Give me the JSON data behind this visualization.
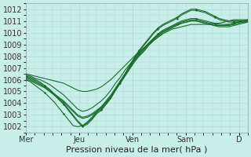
{
  "background_color": "#c8eee8",
  "plot_bg_color": "#c8eee8",
  "grid_color": "#aadddd",
  "line_color": "#1a6b2a",
  "title": "Pression niveau de la mer( hPa )",
  "ylim": [
    1001.5,
    1012.5
  ],
  "yticks": [
    1002,
    1003,
    1004,
    1005,
    1006,
    1007,
    1008,
    1009,
    1010,
    1011,
    1012
  ],
  "xtick_labels": [
    "Mer",
    "Jeu",
    "Ven",
    "Sam",
    "D"
  ],
  "xtick_positions": [
    0,
    24,
    48,
    72,
    96
  ],
  "xlim": [
    0,
    100
  ],
  "lines": [
    [
      1006.3,
      1006.2,
      1006.0,
      1005.8,
      1005.5,
      1005.2,
      1004.8,
      1004.4,
      1004.0,
      1003.5,
      1003.0,
      1002.5,
      1002.1,
      1002.3,
      1002.7,
      1003.2,
      1003.5,
      1004.0,
      1004.5,
      1005.2,
      1005.8,
      1006.5,
      1007.2,
      1007.9,
      1008.5,
      1009.0,
      1009.5,
      1010.0,
      1010.4,
      1010.7,
      1010.9,
      1011.1,
      1011.3,
      1011.6,
      1011.8,
      1012.0,
      1012.0,
      1011.9,
      1011.8,
      1011.6,
      1011.4,
      1011.2,
      1011.1,
      1011.0,
      1011.0,
      1011.0,
      1011.0,
      1011.0
    ],
    [
      1006.3,
      1006.1,
      1005.9,
      1005.7,
      1005.4,
      1005.1,
      1004.7,
      1004.3,
      1003.9,
      1003.4,
      1002.9,
      1002.4,
      1002.0,
      1002.2,
      1002.6,
      1003.1,
      1003.4,
      1003.9,
      1004.4,
      1005.1,
      1005.7,
      1006.4,
      1007.1,
      1007.8,
      1008.4,
      1008.9,
      1009.4,
      1009.9,
      1010.3,
      1010.6,
      1010.8,
      1011.0,
      1011.2,
      1011.5,
      1011.7,
      1011.9,
      1011.9,
      1011.8,
      1011.7,
      1011.5,
      1011.3,
      1011.1,
      1011.0,
      1010.9,
      1010.9,
      1010.9,
      1010.9,
      1010.9
    ],
    [
      1006.2,
      1006.0,
      1005.8,
      1005.6,
      1005.4,
      1005.1,
      1004.8,
      1004.5,
      1004.2,
      1003.8,
      1003.4,
      1003.0,
      1002.8,
      1002.9,
      1003.1,
      1003.4,
      1003.7,
      1004.1,
      1004.6,
      1005.2,
      1005.8,
      1006.4,
      1007.0,
      1007.6,
      1008.1,
      1008.5,
      1009.0,
      1009.4,
      1009.8,
      1010.1,
      1010.3,
      1010.5,
      1010.7,
      1010.9,
      1011.0,
      1011.1,
      1011.1,
      1011.0,
      1010.9,
      1010.8,
      1010.7,
      1010.6,
      1010.6,
      1010.6,
      1010.7,
      1010.8,
      1010.9,
      1011.0
    ],
    [
      1006.1,
      1005.9,
      1005.7,
      1005.5,
      1005.3,
      1005.0,
      1004.7,
      1004.4,
      1004.1,
      1003.7,
      1003.3,
      1002.9,
      1002.7,
      1002.8,
      1003.0,
      1003.3,
      1003.6,
      1004.0,
      1004.5,
      1005.1,
      1005.7,
      1006.3,
      1006.9,
      1007.5,
      1008.0,
      1008.4,
      1008.9,
      1009.3,
      1009.7,
      1010.0,
      1010.2,
      1010.4,
      1010.6,
      1010.8,
      1010.9,
      1011.0,
      1011.0,
      1010.9,
      1010.8,
      1010.7,
      1010.6,
      1010.5,
      1010.5,
      1010.5,
      1010.6,
      1010.7,
      1010.8,
      1010.9
    ],
    [
      1006.4,
      1006.3,
      1006.1,
      1006.0,
      1005.8,
      1005.6,
      1005.3,
      1005.0,
      1004.7,
      1004.3,
      1003.9,
      1003.5,
      1003.3,
      1003.4,
      1003.6,
      1003.9,
      1004.2,
      1004.6,
      1005.1,
      1005.7,
      1006.2,
      1006.8,
      1007.3,
      1007.8,
      1008.3,
      1008.7,
      1009.1,
      1009.5,
      1009.8,
      1010.1,
      1010.3,
      1010.5,
      1010.7,
      1010.8,
      1010.9,
      1011.0,
      1011.0,
      1010.9,
      1010.8,
      1010.7,
      1010.6,
      1010.6,
      1010.6,
      1010.7,
      1010.8,
      1010.9,
      1011.0,
      1011.1
    ],
    [
      1006.5,
      1006.4,
      1006.3,
      1006.2,
      1006.1,
      1006.0,
      1005.9,
      1005.8,
      1005.7,
      1005.5,
      1005.3,
      1005.1,
      1005.0,
      1005.0,
      1005.1,
      1005.2,
      1005.4,
      1005.7,
      1006.0,
      1006.4,
      1006.8,
      1007.2,
      1007.6,
      1008.0,
      1008.4,
      1008.7,
      1009.0,
      1009.3,
      1009.6,
      1009.9,
      1010.1,
      1010.3,
      1010.4,
      1010.5,
      1010.6,
      1010.7,
      1010.7,
      1010.7,
      1010.7,
      1010.7,
      1010.8,
      1010.8,
      1010.9,
      1011.0,
      1011.1,
      1011.1,
      1011.1,
      1011.1
    ],
    [
      1006.0,
      1005.8,
      1005.5,
      1005.2,
      1004.9,
      1004.5,
      1004.1,
      1003.6,
      1003.1,
      1002.6,
      1002.1,
      1002.0,
      1002.1,
      1002.4,
      1002.8,
      1003.3,
      1003.7,
      1004.2,
      1004.7,
      1005.3,
      1005.9,
      1006.5,
      1007.1,
      1007.7,
      1008.2,
      1008.6,
      1009.1,
      1009.5,
      1009.9,
      1010.2,
      1010.4,
      1010.6,
      1010.8,
      1011.0,
      1011.1,
      1011.2,
      1011.2,
      1011.1,
      1011.0,
      1010.9,
      1010.8,
      1010.7,
      1010.7,
      1010.7,
      1010.8,
      1010.9,
      1011.0,
      1011.0
    ]
  ],
  "marker_indices": [
    0,
    4,
    8,
    12,
    16,
    20,
    24,
    28,
    32,
    36,
    40,
    44,
    47
  ],
  "fontsize_label": 8,
  "fontsize_tick": 7
}
